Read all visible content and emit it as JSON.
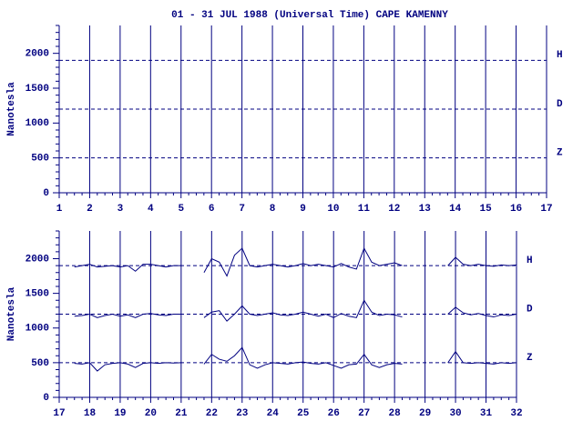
{
  "title": "01 - 31 JUL 1988 (Universal Time) CAPE KAMENNY",
  "chart_data": [
    {
      "type": "line",
      "ylabel": "Nanotesla",
      "xlim": [
        1,
        17
      ],
      "xticks": [
        1,
        2,
        3,
        4,
        5,
        6,
        7,
        8,
        9,
        10,
        11,
        12,
        13,
        14,
        15,
        16,
        17
      ],
      "ylim": [
        0,
        2400
      ],
      "yticks": [
        0,
        500,
        1000,
        1500,
        2000
      ],
      "grid": true,
      "series": [
        {
          "name": "H",
          "color": "#000080",
          "baseline": 1900
        },
        {
          "name": "D",
          "color": "#000080",
          "baseline": 1200
        },
        {
          "name": "Z",
          "color": "#000080",
          "baseline": 500
        }
      ]
    },
    {
      "type": "line",
      "ylabel": "Nanotesla",
      "xlim": [
        17,
        32
      ],
      "xticks": [
        17,
        18,
        19,
        20,
        21,
        22,
        23,
        24,
        25,
        26,
        27,
        28,
        29,
        30,
        31,
        32
      ],
      "ylim": [
        0,
        2400
      ],
      "yticks": [
        0,
        500,
        1000,
        1500,
        2000
      ],
      "grid": true,
      "x": [
        17.5,
        17.75,
        18,
        18.25,
        18.5,
        18.75,
        19,
        19.25,
        19.5,
        19.75,
        20,
        20.25,
        20.5,
        20.75,
        21,
        21.25,
        21.5,
        21.75,
        22,
        22.25,
        22.5,
        22.75,
        23,
        23.25,
        23.5,
        23.75,
        24,
        24.25,
        24.5,
        24.75,
        25,
        25.25,
        25.5,
        25.75,
        26,
        26.25,
        26.5,
        26.75,
        27,
        27.25,
        27.5,
        27.75,
        28,
        28.25,
        28.5,
        28.75,
        29,
        29.25,
        29.5,
        29.75,
        30,
        30.25,
        30.5,
        30.75,
        31,
        31.25,
        31.5,
        31.75,
        32
      ],
      "series": [
        {
          "name": "H",
          "color": "#000080",
          "baseline": 1900,
          "values": [
            1880,
            1900,
            1920,
            1880,
            1890,
            1900,
            1880,
            1900,
            1820,
            1920,
            1920,
            1900,
            1880,
            1900,
            1900,
            null,
            null,
            1800,
            2000,
            1950,
            1750,
            2050,
            2150,
            1900,
            1880,
            1900,
            1920,
            1900,
            1880,
            1900,
            1930,
            1900,
            1920,
            1900,
            1880,
            1930,
            1880,
            1850,
            2150,
            1950,
            1900,
            1920,
            1940,
            1900,
            null,
            null,
            null,
            null,
            null,
            1900,
            2020,
            1920,
            1900,
            1920,
            1900,
            1890,
            1910,
            1900,
            1910
          ]
        },
        {
          "name": "D",
          "color": "#000080",
          "baseline": 1200,
          "values": [
            1170,
            1180,
            1200,
            1150,
            1180,
            1200,
            1170,
            1190,
            1150,
            1200,
            1210,
            1190,
            1180,
            1200,
            1200,
            null,
            null,
            1150,
            1230,
            1250,
            1100,
            1200,
            1320,
            1200,
            1180,
            1200,
            1220,
            1190,
            1180,
            1200,
            1230,
            1200,
            1170,
            1200,
            1150,
            1210,
            1170,
            1150,
            1400,
            1230,
            1180,
            1200,
            1190,
            1160,
            null,
            null,
            null,
            null,
            null,
            1200,
            1300,
            1220,
            1190,
            1210,
            1180,
            1160,
            1190,
            1180,
            1200
          ]
        },
        {
          "name": "Z",
          "color": "#000080",
          "baseline": 500,
          "values": [
            490,
            480,
            500,
            380,
            470,
            490,
            500,
            480,
            430,
            490,
            500,
            490,
            500,
            495,
            500,
            null,
            null,
            480,
            620,
            550,
            520,
            600,
            720,
            470,
            420,
            470,
            500,
            490,
            480,
            500,
            510,
            490,
            480,
            500,
            460,
            420,
            470,
            480,
            620,
            470,
            430,
            470,
            490,
            480,
            null,
            null,
            null,
            null,
            null,
            500,
            660,
            500,
            490,
            500,
            490,
            480,
            500,
            490,
            500
          ]
        }
      ]
    }
  ]
}
